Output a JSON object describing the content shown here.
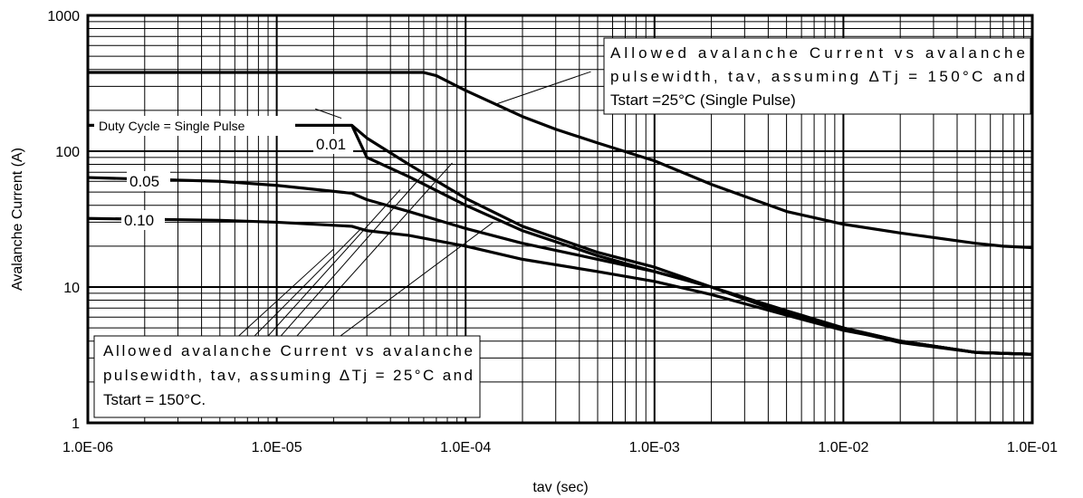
{
  "chart_data": {
    "type": "line",
    "xscale": "log",
    "yscale": "log",
    "xlim": [
      1e-06,
      0.1
    ],
    "ylim": [
      1,
      1000
    ],
    "grid": true,
    "xlabel": "tav (sec)",
    "ylabel": "Avalanche Current (A)",
    "xticks": [
      {
        "value": 1e-06,
        "label": "1.0E-06"
      },
      {
        "value": 1e-05,
        "label": "1.0E-05"
      },
      {
        "value": 0.0001,
        "label": "1.0E-04"
      },
      {
        "value": 0.001,
        "label": "1.0E-03"
      },
      {
        "value": 0.01,
        "label": "1.0E-02"
      },
      {
        "value": 0.1,
        "label": "1.0E-01"
      }
    ],
    "yticks": [
      {
        "value": 1,
        "label": "1"
      },
      {
        "value": 10,
        "label": "10"
      },
      {
        "value": 100,
        "label": "100"
      },
      {
        "value": 1000,
        "label": "1000"
      }
    ],
    "series": [
      {
        "name": "",
        "x": [
          1e-06,
          6e-05,
          7e-05,
          0.0001,
          0.0002,
          0.0003,
          0.0005,
          0.001,
          0.002,
          0.005,
          0.01,
          0.02,
          0.05,
          0.07,
          0.1
        ],
        "y": [
          380,
          380,
          360,
          280,
          180,
          145,
          115,
          85,
          57,
          36,
          29,
          25,
          21,
          20,
          19.5
        ]
      },
      {
        "name": "",
        "x": [
          1e-06,
          2.5e-05,
          3e-05,
          5e-05,
          0.0001,
          0.0002,
          0.0005,
          0.001,
          0.002,
          0.005,
          0.01,
          0.02,
          0.05,
          0.1
        ],
        "y": [
          155,
          155,
          125,
          80,
          45,
          28,
          18,
          14,
          10,
          6.3,
          4.9,
          3.9,
          3.3,
          3.2
        ]
      },
      {
        "name": "0.01",
        "x": [
          1e-06,
          2.5e-05,
          3e-05,
          5e-05,
          0.0001,
          0.0002,
          0.0005,
          0.001,
          0.002,
          0.005,
          0.01,
          0.02,
          0.05,
          0.1
        ],
        "y": [
          155,
          155,
          90,
          65,
          40,
          26,
          17,
          13,
          10,
          6.5,
          5,
          4,
          3.3,
          3.2
        ]
      },
      {
        "name": "0.05",
        "x": [
          1e-06,
          5e-06,
          1e-05,
          2.5e-05,
          3e-05,
          5e-05,
          0.0001,
          0.0002,
          0.0005,
          0.001,
          0.002,
          0.005,
          0.01,
          0.02,
          0.05,
          0.1
        ],
        "y": [
          64,
          60,
          56,
          49,
          44,
          36,
          27,
          21,
          16,
          13,
          10,
          6.7,
          5,
          4,
          3.3,
          3.2
        ]
      },
      {
        "name": "0.10",
        "x": [
          1e-06,
          5e-06,
          1e-05,
          2.5e-05,
          3e-05,
          5e-05,
          0.0001,
          0.0002,
          0.0005,
          0.001,
          0.002,
          0.005,
          0.01,
          0.02,
          0.05,
          0.1
        ],
        "y": [
          32,
          31,
          30,
          28,
          26,
          24,
          20,
          16,
          13,
          11,
          8.8,
          6.2,
          4.8,
          4,
          3.3,
          3.2
        ]
      }
    ],
    "annotations": {
      "duty_cycle": "Duty Cycle = Single Pulse",
      "top": [
        "Allowed  avalanche  Current  vs  avalanche",
        "pulsewidth, tav, assuming ΔTj = 150°C and",
        "Tstart =25°C (Single Pulse)"
      ],
      "bottom": [
        "Allowed  avalanche  Current  vs  avalanche",
        "pulsewidth, tav, assuming ΔTj = 25°C and",
        "Tstart = 150°C."
      ]
    }
  }
}
